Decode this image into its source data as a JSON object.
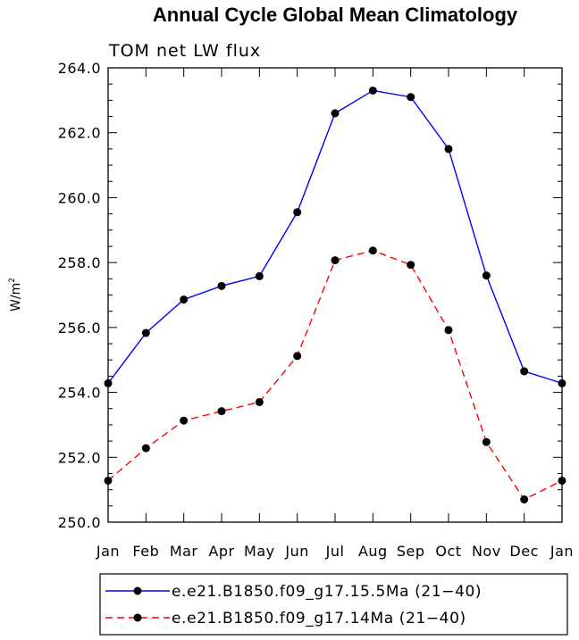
{
  "chart_data": {
    "type": "line",
    "title": "Annual Cycle Global Mean Climatology",
    "subtitle": "TOM net LW flux",
    "xlabel": "",
    "ylabel": "W/m",
    "ylabel_sup": "2",
    "categories": [
      "Jan",
      "Feb",
      "Mar",
      "Apr",
      "May",
      "Jun",
      "Jul",
      "Aug",
      "Sep",
      "Oct",
      "Nov",
      "Dec",
      "Jan"
    ],
    "ylim": [
      250.0,
      264.0
    ],
    "yticks": [
      "250.0",
      "252.0",
      "254.0",
      "256.0",
      "258.0",
      "260.0",
      "262.0",
      "264.0"
    ],
    "grid": false,
    "legend_position": "bottom",
    "series": [
      {
        "name": "e.e21.B1850.f09_g17.15.5Ma (21−40)",
        "color": "#0000ff",
        "dash": "solid",
        "values": [
          254.28,
          255.83,
          256.86,
          257.28,
          257.58,
          259.55,
          262.6,
          263.3,
          263.1,
          261.5,
          257.6,
          254.65,
          254.28
        ]
      },
      {
        "name": "e.e21.B1850.f09_g17.14Ma (21−40)",
        "color": "#ff0000",
        "dash": "dashed",
        "values": [
          251.28,
          252.28,
          253.13,
          253.42,
          253.7,
          255.12,
          258.07,
          258.37,
          257.93,
          255.92,
          252.47,
          250.7,
          251.28
        ]
      }
    ]
  }
}
